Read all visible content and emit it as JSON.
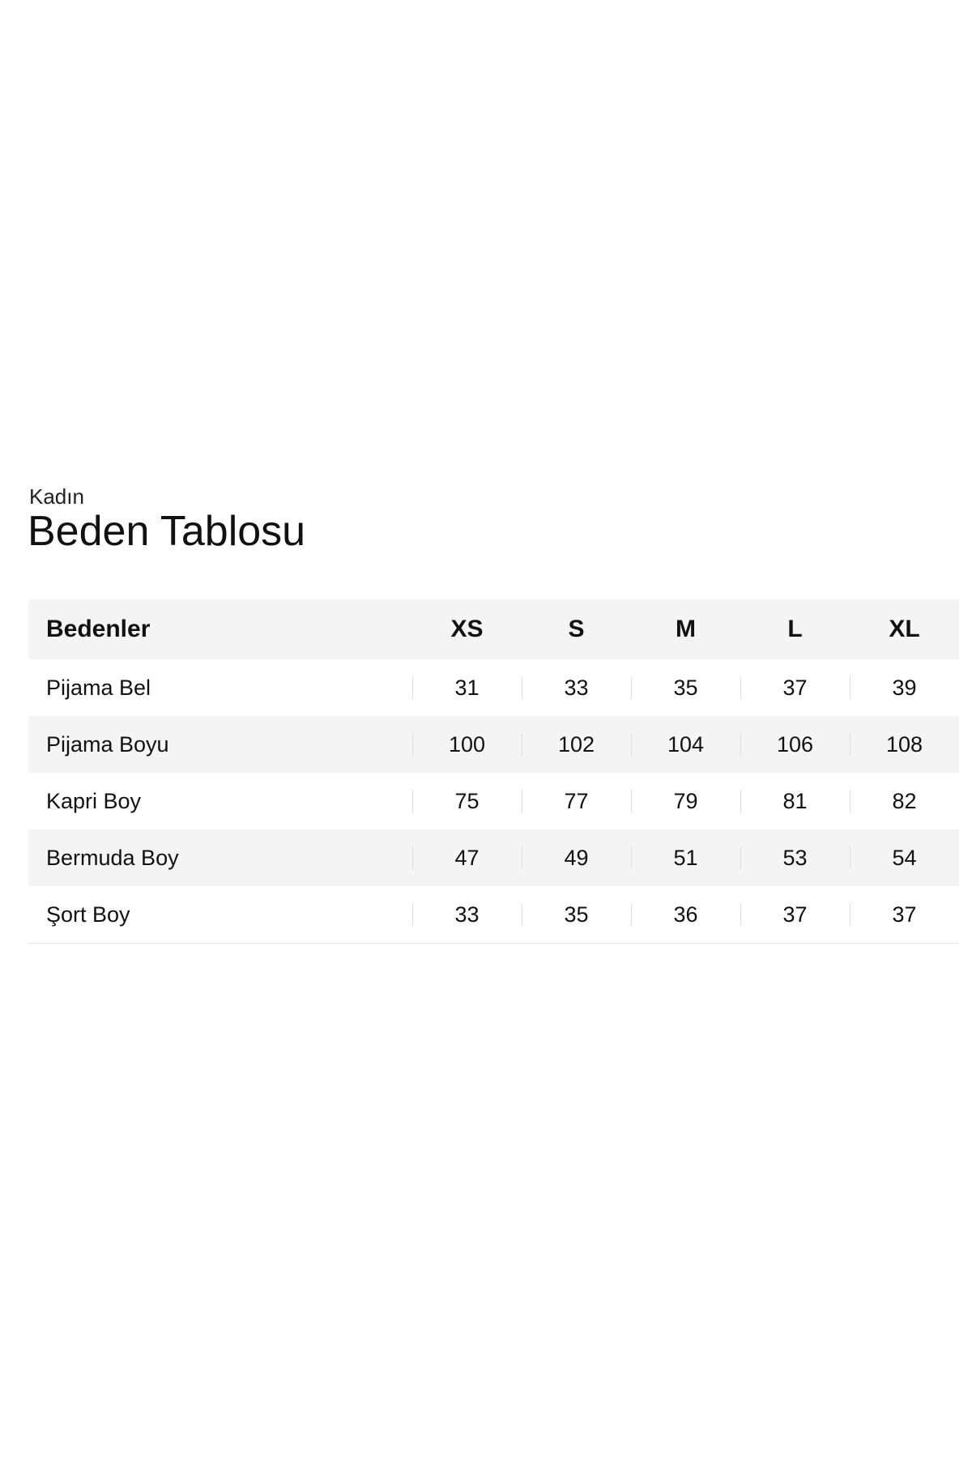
{
  "header": {
    "subtitle": "Kadın",
    "title": "Beden Tablosu"
  },
  "table": {
    "columns": [
      "Bedenler",
      "XS",
      "S",
      "M",
      "L",
      "XL"
    ],
    "rows": [
      {
        "label": "Pijama Bel",
        "values": [
          "31",
          "33",
          "35",
          "37",
          "39"
        ]
      },
      {
        "label": "Pijama Boyu",
        "values": [
          "100",
          "102",
          "104",
          "106",
          "108"
        ]
      },
      {
        "label": "Kapri Boy",
        "values": [
          "75",
          "77",
          "79",
          "81",
          "82"
        ]
      },
      {
        "label": "Bermuda Boy",
        "values": [
          "47",
          "49",
          "51",
          "53",
          "54"
        ]
      },
      {
        "label": "Şort Boy",
        "values": [
          "33",
          "35",
          "36",
          "37",
          "37"
        ]
      }
    ]
  }
}
